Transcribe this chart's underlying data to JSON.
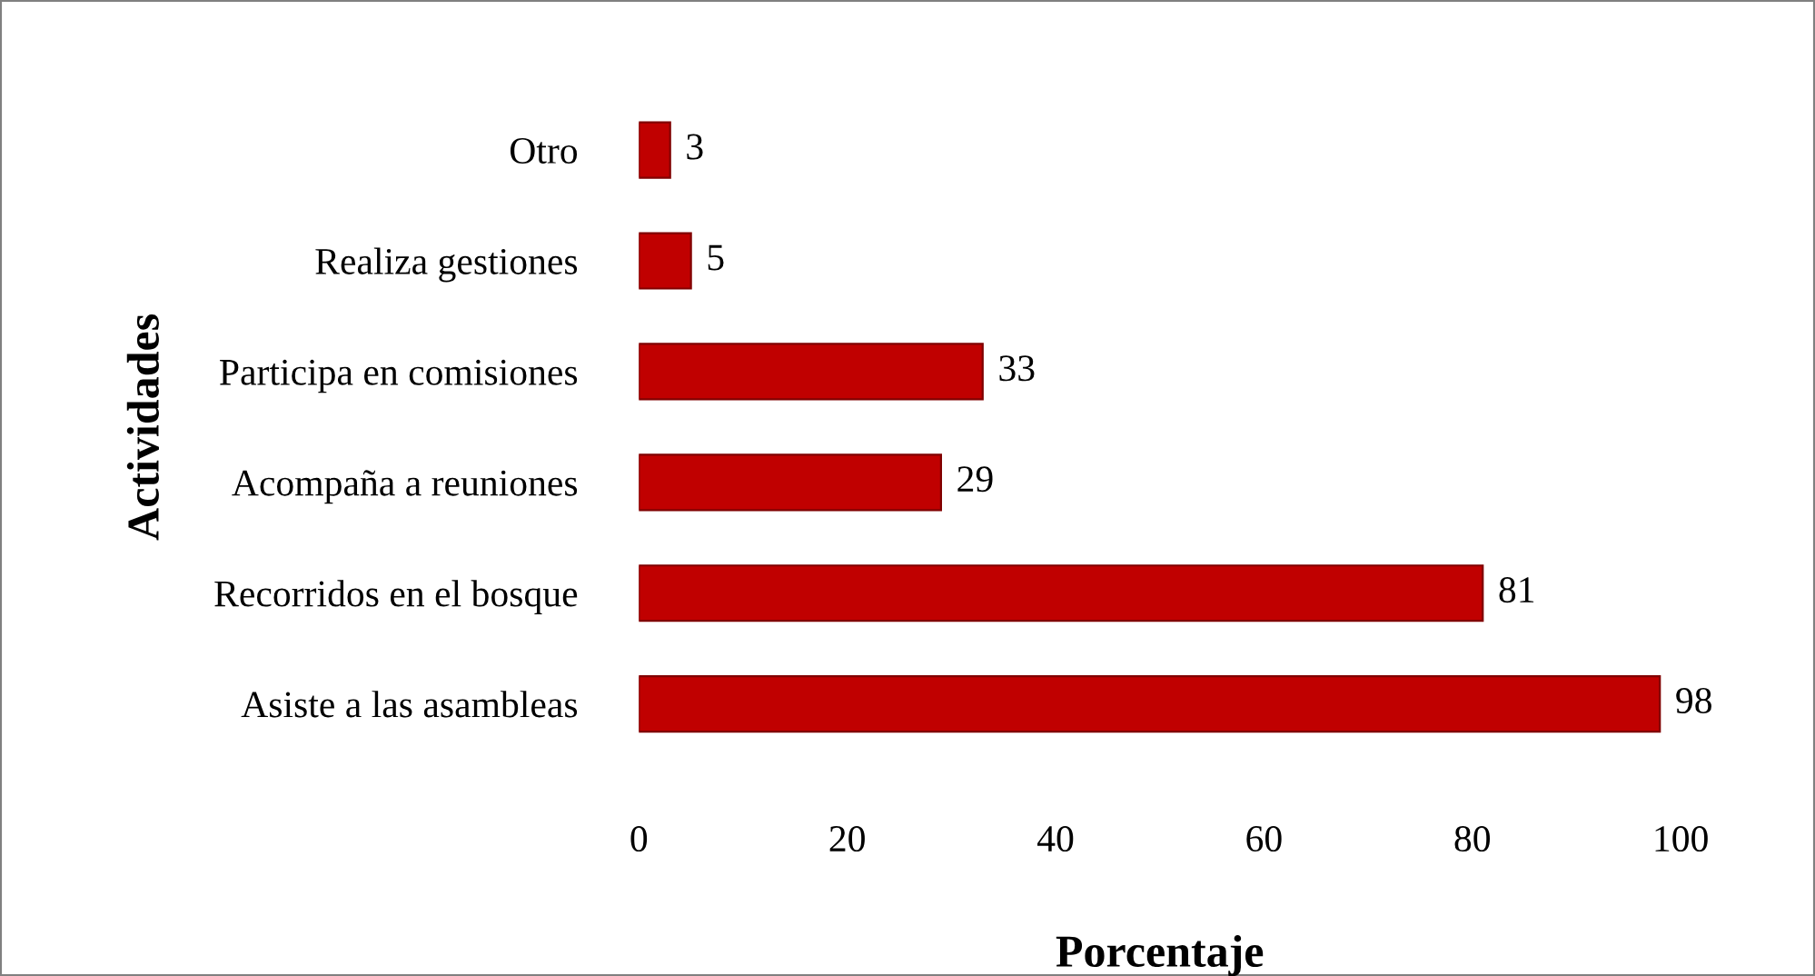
{
  "chart_data": {
    "type": "bar",
    "orientation": "horizontal",
    "xlabel": "Porcentaje",
    "ylabel": "Actividades",
    "categories": [
      "Otro",
      "Realiza gestiones",
      "Participa en comisiones",
      "Acompaña a reuniones",
      "Recorridos en el bosque",
      "Asiste a las asambleas"
    ],
    "values": [
      3,
      5,
      33,
      29,
      81,
      98
    ],
    "color": "#c00000",
    "xlim": [
      0,
      100
    ],
    "xticks": [
      0,
      20,
      40,
      60,
      80,
      100
    ],
    "data_labels": true,
    "grid": false,
    "legend": false
  }
}
